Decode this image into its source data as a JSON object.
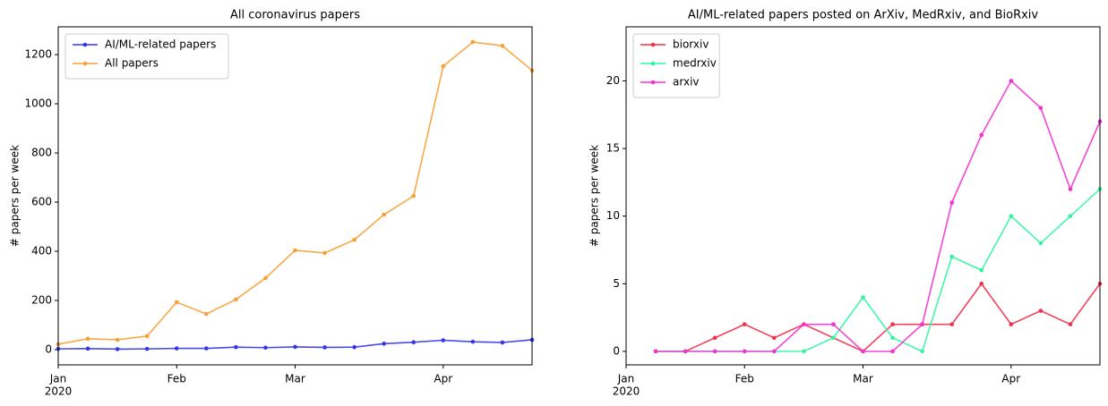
{
  "chart_data": [
    {
      "type": "line",
      "title": "All coronavirus papers",
      "y_label": "# papers per week",
      "categories": [
        "Jan",
        null,
        null,
        null,
        "Feb",
        null,
        null,
        null,
        "Mar",
        null,
        null,
        null,
        null,
        "Apr",
        null,
        null,
        null
      ],
      "year_label": "2020",
      "series": [
        {
          "name": "AI/ML-related papers",
          "color": "#3535ee",
          "values": [
            3,
            4,
            2,
            3,
            5,
            5,
            10,
            8,
            11,
            9,
            10,
            24,
            30,
            38,
            32,
            29,
            40
          ]
        },
        {
          "name": "All papers",
          "color": "#f7a035",
          "values": [
            22,
            44,
            40,
            55,
            193,
            145,
            204,
            291,
            404,
            393,
            447,
            549,
            625,
            1153,
            1251,
            1236,
            1135
          ]
        }
      ],
      "ylim": [
        -62,
        1313
      ],
      "yticks": [
        0,
        200,
        400,
        600,
        800,
        1000,
        1200
      ],
      "legend": "upper left"
    },
    {
      "type": "line",
      "title": "AI/ML-related papers posted on ArXiv, MedRxiv, and BioRxiv",
      "y_label": "# papers per week",
      "categories": [
        "Jan",
        null,
        null,
        null,
        "Feb",
        null,
        null,
        null,
        "Mar",
        null,
        null,
        null,
        null,
        "Apr",
        null,
        null,
        null
      ],
      "year_label": "2020",
      "series": [
        {
          "name": "biorxiv",
          "color": "#f0304a",
          "values": [
            null,
            0,
            0,
            1,
            2,
            1,
            2,
            1,
            0,
            2,
            2,
            2,
            5,
            2,
            3,
            2,
            5
          ]
        },
        {
          "name": "medrxiv",
          "color": "#30f5a0",
          "values": [
            null,
            0,
            0,
            0,
            0,
            0,
            0,
            1,
            4,
            1,
            0,
            7,
            6,
            10,
            8,
            10,
            12
          ]
        },
        {
          "name": "arxiv",
          "color": "#f530d0",
          "values": [
            null,
            0,
            0,
            0,
            0,
            0,
            2,
            2,
            0,
            0,
            2,
            11,
            16,
            20,
            18,
            12,
            17
          ]
        }
      ],
      "ylim": [
        -1,
        24
      ],
      "yticks": [
        0,
        5,
        10,
        15,
        20
      ],
      "legend": "upper left"
    }
  ]
}
